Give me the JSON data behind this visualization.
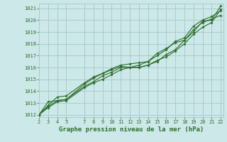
{
  "title": "Graphe pression niveau de la mer (hPa)",
  "bg_color": "#cce8e8",
  "grid_color": "#aacccc",
  "line_color": "#2d6e2d",
  "x_ticks": [
    2,
    3,
    4,
    5,
    7,
    8,
    9,
    10,
    11,
    12,
    13,
    14,
    15,
    16,
    17,
    18,
    19,
    20,
    21,
    22
  ],
  "xlim": [
    2,
    22.3
  ],
  "ylim": [
    1011.8,
    1021.4
  ],
  "y_ticks": [
    1012,
    1013,
    1014,
    1015,
    1016,
    1017,
    1018,
    1019,
    1020,
    1021
  ],
  "line1_x": [
    2,
    3,
    4,
    5,
    7,
    8,
    9,
    10,
    11,
    12,
    13,
    14,
    15,
    16,
    17,
    18,
    19,
    20,
    21,
    22
  ],
  "line1_y": [
    1012.0,
    1012.7,
    1013.2,
    1013.3,
    1014.4,
    1014.8,
    1015.3,
    1015.6,
    1016.0,
    1016.0,
    1016.0,
    1016.2,
    1016.5,
    1017.1,
    1017.5,
    1018.3,
    1019.0,
    1019.9,
    1020.0,
    1021.2
  ],
  "line2_x": [
    2,
    3,
    4,
    5,
    7,
    8,
    9,
    10,
    11,
    12,
    13,
    14,
    15,
    16,
    17,
    18,
    19,
    20,
    21,
    22
  ],
  "line2_y": [
    1012.0,
    1013.1,
    1013.2,
    1013.3,
    1014.6,
    1015.1,
    1015.5,
    1015.8,
    1016.1,
    1016.0,
    1016.2,
    1016.5,
    1017.0,
    1017.5,
    1018.2,
    1018.5,
    1019.5,
    1020.0,
    1020.3,
    1020.8
  ],
  "line3_x": [
    2,
    3,
    4,
    5,
    7,
    8,
    9,
    10,
    11,
    12,
    13,
    14,
    15,
    16,
    17,
    18,
    19,
    20,
    21,
    22
  ],
  "line3_y": [
    1012.0,
    1012.8,
    1013.5,
    1013.6,
    1014.7,
    1015.2,
    1015.5,
    1015.9,
    1016.2,
    1016.3,
    1016.4,
    1016.5,
    1017.2,
    1017.6,
    1018.1,
    1018.3,
    1019.2,
    1019.8,
    1020.1,
    1020.4
  ],
  "line4_x": [
    2,
    3,
    4,
    5,
    7,
    8,
    9,
    10,
    11,
    12,
    13,
    14,
    15,
    16,
    17,
    18,
    19,
    20,
    21,
    22
  ],
  "line4_y": [
    1012.0,
    1012.6,
    1013.1,
    1013.2,
    1014.3,
    1014.7,
    1015.0,
    1015.4,
    1015.8,
    1016.0,
    1016.0,
    1016.2,
    1016.6,
    1016.9,
    1017.4,
    1018.0,
    1018.8,
    1019.4,
    1019.8,
    1020.9
  ]
}
